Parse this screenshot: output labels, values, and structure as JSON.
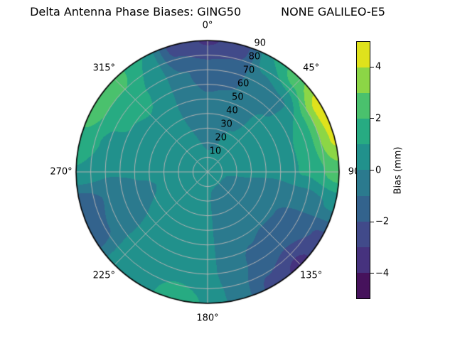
{
  "title": "Delta Antenna Phase Biases: GING50           NONE GALILEO-E5",
  "chart_data": {
    "type": "heatmap",
    "subtype": "polar_filled_contour",
    "title": "Delta Antenna Phase Biases: GING50           NONE GALILEO-E5",
    "angular_tick_labels": [
      "0°",
      "45°",
      "90",
      "135°",
      "180°",
      "225°",
      "270°",
      "315°"
    ],
    "angular_tick_degrees": [
      0,
      45,
      90,
      135,
      180,
      225,
      270,
      315
    ],
    "radial_tick_labels": [
      "10",
      "20",
      "30",
      "40",
      "50",
      "60",
      "70",
      "80",
      "90"
    ],
    "radial_tick_values": [
      10,
      20,
      30,
      40,
      50,
      60,
      70,
      80,
      90
    ],
    "radial_label_angle_deg": 22.5,
    "radial_max": 90,
    "grid_on": true,
    "grid_color": "#b3b3b3",
    "outline_color": "#000000",
    "colorbar": {
      "label": "Bias (mm)",
      "tick_labels": [
        "4",
        "2",
        "0",
        "−2",
        "−4"
      ],
      "tick_values": [
        4,
        2,
        0,
        -2,
        -4
      ],
      "range": [
        -5,
        5
      ],
      "levels": [
        -5,
        -4,
        -3,
        -2,
        -1,
        0,
        1,
        2,
        3,
        4,
        5
      ],
      "colors": [
        "#46125c",
        "#46327e",
        "#414a8a",
        "#33638d",
        "#2b7a8e",
        "#21918c",
        "#27ab82",
        "#4ac16d",
        "#8cd646",
        "#dfe21c"
      ],
      "position": "right"
    },
    "field": {
      "description": "Bias (mm) sampled on polar grid; azimuth deg clockwise from top, radius 0=center to 90=edge",
      "azimuth_deg": [
        0,
        15,
        30,
        45,
        60,
        75,
        90,
        105,
        120,
        135,
        150,
        165,
        180,
        195,
        210,
        225,
        240,
        255,
        270,
        285,
        300,
        315,
        330,
        345
      ],
      "radius": [
        0,
        22.5,
        45,
        67.5,
        90
      ],
      "bias_mm": [
        [
          0.3,
          -0.1,
          -0.8,
          -1.3,
          -3.1
        ],
        [
          0.3,
          -0.1,
          -0.7,
          -1.2,
          -2.7
        ],
        [
          0.3,
          0.2,
          -0.3,
          -0.6,
          1.0
        ],
        [
          0.3,
          0.4,
          0.2,
          -0.3,
          2.8
        ],
        [
          0.3,
          0.4,
          0.2,
          1.0,
          4.6
        ],
        [
          0.3,
          0.3,
          0.1,
          1.2,
          4.2
        ],
        [
          0.3,
          0.3,
          0.3,
          1.1,
          2.6
        ],
        [
          0.3,
          -0.2,
          -0.6,
          -0.5,
          0.2
        ],
        [
          0.3,
          -0.3,
          -0.8,
          -1.4,
          -2.2
        ],
        [
          0.3,
          -0.3,
          -0.8,
          -1.6,
          -3.3
        ],
        [
          0.3,
          -0.3,
          -0.7,
          -1.2,
          -2.3
        ],
        [
          0.3,
          -0.2,
          -0.5,
          -0.7,
          -0.6
        ],
        [
          0.3,
          0.1,
          0.2,
          0.3,
          0.9
        ],
        [
          0.3,
          0.2,
          0.3,
          0.5,
          1.6
        ],
        [
          0.3,
          0.2,
          0.3,
          0.4,
          0.7
        ],
        [
          0.3,
          0.3,
          0.3,
          0.4,
          0.5
        ],
        [
          0.3,
          0.2,
          0.0,
          -0.6,
          -1.6
        ],
        [
          0.3,
          0.2,
          -0.1,
          -0.8,
          -1.8
        ],
        [
          0.3,
          0.3,
          0.1,
          0.1,
          0.9
        ],
        [
          0.3,
          0.3,
          0.2,
          0.6,
          1.8
        ],
        [
          0.3,
          0.3,
          0.4,
          1.2,
          2.6
        ],
        [
          0.3,
          0.4,
          0.6,
          1.5,
          2.4
        ],
        [
          0.3,
          0.3,
          0.2,
          0.6,
          1.0
        ],
        [
          0.3,
          0.0,
          -0.5,
          -0.9,
          -2.5
        ]
      ]
    }
  }
}
